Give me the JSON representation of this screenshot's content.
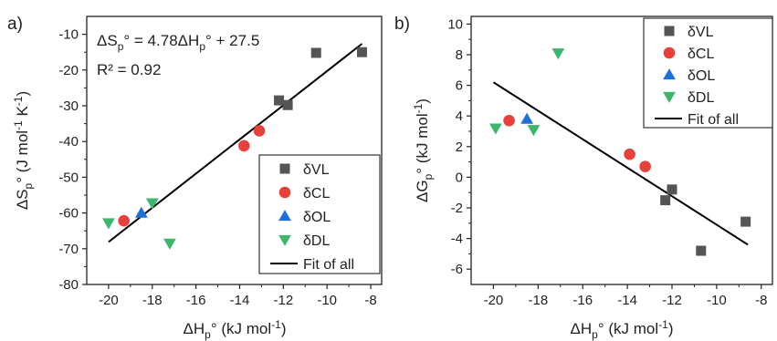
{
  "figure": {
    "colors": {
      "dVL": "#555555",
      "dCL": "#e8413c",
      "dOL": "#1e6fd9",
      "dDL": "#3cb56d",
      "fit": "#000000",
      "axis": "#222222"
    }
  },
  "chart_data": [
    {
      "type": "scatter",
      "panel_label": "a)",
      "xlabel": "ΔHp° (kJ mol-1)",
      "ylabel": "ΔSp° (J mol-1 K-1)",
      "xlim": [
        -21,
        -7.5
      ],
      "ylim": [
        -80,
        -5
      ],
      "xticks": [
        -20,
        -18,
        -16,
        -14,
        -12,
        -10,
        -8
      ],
      "yticks": [
        -80,
        -70,
        -60,
        -50,
        -40,
        -30,
        -20,
        -10
      ],
      "annotations": [
        "ΔSp° = 4.78ΔHp° + 27.5",
        "R² = 0.92"
      ],
      "legend_position": "bottom-right",
      "grid": false,
      "series": [
        {
          "name": "δVL",
          "marker": "square",
          "color": "#555555",
          "points": [
            [
              -12.2,
              -28.5
            ],
            [
              -11.8,
              -29.8
            ],
            [
              -10.5,
              -15.2
            ],
            [
              -8.4,
              -15.0
            ]
          ]
        },
        {
          "name": "δCL",
          "marker": "circle",
          "color": "#e8413c",
          "points": [
            [
              -19.3,
              -62.2
            ],
            [
              -13.8,
              -41.2
            ],
            [
              -13.1,
              -37.0
            ]
          ]
        },
        {
          "name": "δOL",
          "marker": "triangle-up",
          "color": "#1e6fd9",
          "points": [
            [
              -18.5,
              -60.0
            ]
          ]
        },
        {
          "name": "δDL",
          "marker": "triangle-down",
          "color": "#3cb56d",
          "points": [
            [
              -20.0,
              -62.8
            ],
            [
              -18.0,
              -57.2
            ],
            [
              -17.2,
              -68.5
            ]
          ]
        }
      ],
      "fit": {
        "name": "Fit of all",
        "slope": 4.78,
        "intercept": 27.5,
        "x_range": [
          -20.0,
          -8.4
        ]
      }
    },
    {
      "type": "scatter",
      "panel_label": "b)",
      "xlabel": "ΔHp° (kJ mol-1)",
      "ylabel": "ΔGp° (kJ mol-1)",
      "xlim": [
        -21,
        -7.5
      ],
      "ylim": [
        -7,
        10.5
      ],
      "xticks": [
        -20,
        -18,
        -16,
        -14,
        -12,
        -10,
        -8
      ],
      "yticks": [
        -6,
        -4,
        -2,
        0,
        2,
        4,
        6,
        8,
        10
      ],
      "annotations": [],
      "legend_position": "top-right",
      "grid": false,
      "series": [
        {
          "name": "δVL",
          "marker": "square",
          "color": "#555555",
          "points": [
            [
              -12.3,
              -1.5
            ],
            [
              -12.0,
              -0.8
            ],
            [
              -10.7,
              -4.8
            ],
            [
              -8.7,
              -2.9
            ]
          ]
        },
        {
          "name": "δCL",
          "marker": "circle",
          "color": "#e8413c",
          "points": [
            [
              -19.3,
              3.7
            ],
            [
              -13.9,
              1.5
            ],
            [
              -13.2,
              0.7
            ]
          ]
        },
        {
          "name": "δOL",
          "marker": "triangle-up",
          "color": "#1e6fd9",
          "points": [
            [
              -18.5,
              3.8
            ]
          ]
        },
        {
          "name": "δDL",
          "marker": "triangle-down",
          "color": "#3cb56d",
          "points": [
            [
              -19.9,
              3.2
            ],
            [
              -18.2,
              3.1
            ],
            [
              -17.1,
              8.1
            ]
          ]
        }
      ],
      "fit": {
        "name": "Fit of all",
        "slope": -0.93,
        "intercept": -12.4,
        "x_range": [
          -20.0,
          -8.6
        ]
      }
    }
  ]
}
